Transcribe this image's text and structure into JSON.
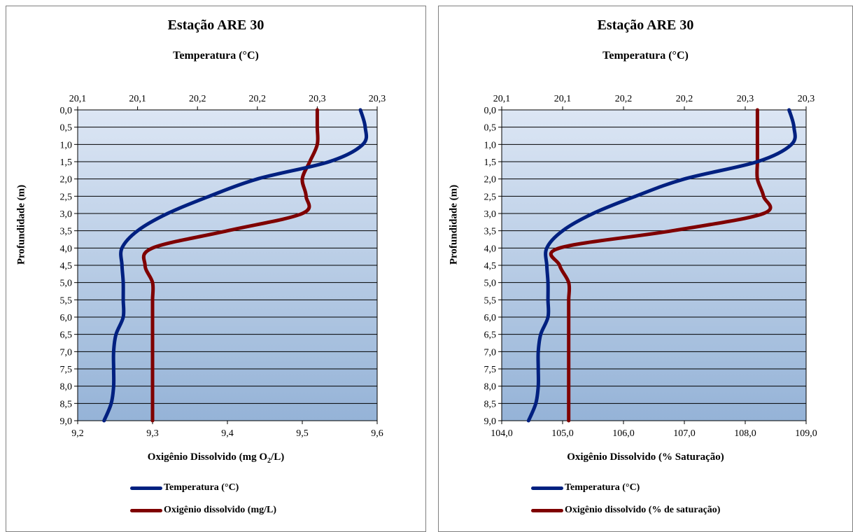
{
  "panels": [
    {
      "title": "Estação ARE 30",
      "top_axis_title": "Temperatura  (°C)",
      "y_axis_title": "Profundidade  (m)",
      "bottom_axis_title_pre": "Oxigênio  Dissolvido  (mg  O",
      "bottom_axis_title_sub": "2",
      "bottom_axis_title_post": "/L)",
      "legend": [
        "Temperatura (°C)",
        "Oxigênio dissolvido (mg/L)"
      ]
    },
    {
      "title": "Estação ARE 30",
      "top_axis_title": "Temperatura  (°C)",
      "y_axis_title": "Profundidade  (m)",
      "bottom_axis_title": "Oxigênio  Dissolvido  (% Saturação)",
      "legend": [
        "Temperatura (°C)",
        "Oxigênio dissolvido (% de saturação)"
      ]
    }
  ],
  "colors": {
    "temperature": "#002080",
    "oxygen": "#7f0000",
    "plot_top": "#dce6f4",
    "plot_bottom": "#95b3d7"
  },
  "chart_data": [
    {
      "type": "line",
      "title": "Estação ARE 30",
      "depth": [
        0,
        0.5,
        1,
        1.5,
        2,
        2.5,
        3,
        3.5,
        4,
        4.5,
        5,
        5.5,
        6,
        6.5,
        7,
        7.5,
        8,
        8.5,
        9
      ],
      "y_ticks": [
        "0,0",
        "0,5",
        "1,0",
        "1,5",
        "2,0",
        "2,5",
        "3,0",
        "3,5",
        "4,0",
        "4,5",
        "5,0",
        "5,5",
        "6,0",
        "6,5",
        "7,0",
        "7,5",
        "8,0",
        "8,5",
        "9,0"
      ],
      "ylabel": "Profundidade  (m)",
      "ylim": [
        0,
        9
      ],
      "y_reversed": true,
      "top_axis": {
        "label": "Temperatura  (°C)",
        "range": [
          20.05,
          20.3
        ],
        "ticks": [
          "20,1",
          "20,1",
          "20,2",
          "20,2",
          "20,3",
          "20,3"
        ],
        "series": {
          "name": "Temperatura (°C)",
          "values": [
            20.286,
            20.29,
            20.288,
            20.26,
            20.2,
            20.16,
            20.125,
            20.1,
            20.087,
            20.087,
            20.088,
            20.088,
            20.088,
            20.082,
            20.08,
            20.08,
            20.08,
            20.078,
            20.072
          ]
        }
      },
      "bottom_axis": {
        "label": "Oxigênio  Dissolvido  (mg  O2/L)",
        "range": [
          9.2,
          9.6
        ],
        "ticks": [
          "9,2",
          "9,3",
          "9,4",
          "9,5",
          "9,6"
        ],
        "series": {
          "name": "Oxigênio dissolvido (mg/L)",
          "values": [
            9.52,
            9.52,
            9.52,
            9.51,
            9.5,
            9.505,
            9.5,
            9.4,
            9.3,
            9.29,
            9.3,
            9.3,
            9.3,
            9.3,
            9.3,
            9.3,
            9.3,
            9.3,
            9.3
          ]
        }
      },
      "grid": true,
      "legend_position": "bottom"
    },
    {
      "type": "line",
      "title": "Estação ARE 30",
      "depth": [
        0,
        0.5,
        1,
        1.5,
        2,
        2.5,
        3,
        3.5,
        4,
        4.5,
        5,
        5.5,
        6,
        6.5,
        7,
        7.5,
        8,
        8.5,
        9
      ],
      "y_ticks": [
        "0,0",
        "0,5",
        "1,0",
        "1,5",
        "2,0",
        "2,5",
        "3,0",
        "3,5",
        "4,0",
        "4,5",
        "5,0",
        "5,5",
        "6,0",
        "6,5",
        "7,0",
        "7,5",
        "8,0",
        "8,5",
        "9,0"
      ],
      "ylabel": "Profundidade  (m)",
      "ylim": [
        0,
        9
      ],
      "y_reversed": true,
      "top_axis": {
        "label": "Temperatura  (°C)",
        "range": [
          20.05,
          20.3
        ],
        "ticks": [
          "20,1",
          "20,1",
          "20,2",
          "20,2",
          "20,3",
          "20,3"
        ],
        "series": {
          "name": "Temperatura (°C)",
          "values": [
            20.286,
            20.29,
            20.288,
            20.26,
            20.2,
            20.16,
            20.125,
            20.1,
            20.087,
            20.087,
            20.088,
            20.088,
            20.088,
            20.082,
            20.08,
            20.08,
            20.08,
            20.078,
            20.072
          ]
        }
      },
      "bottom_axis": {
        "label": "Oxigênio  Dissolvido  (% Saturação)",
        "range": [
          104.0,
          109.0
        ],
        "ticks": [
          "104,0",
          "105,0",
          "106,0",
          "107,0",
          "108,0",
          "109,0"
        ],
        "series": {
          "name": "Oxigênio dissolvido (% de saturação)",
          "values": [
            108.2,
            108.2,
            108.2,
            108.2,
            108.2,
            108.3,
            108.3,
            106.8,
            104.95,
            104.95,
            105.1,
            105.1,
            105.1,
            105.1,
            105.1,
            105.1,
            105.1,
            105.1,
            105.1
          ]
        }
      },
      "grid": true,
      "legend_position": "bottom"
    }
  ]
}
